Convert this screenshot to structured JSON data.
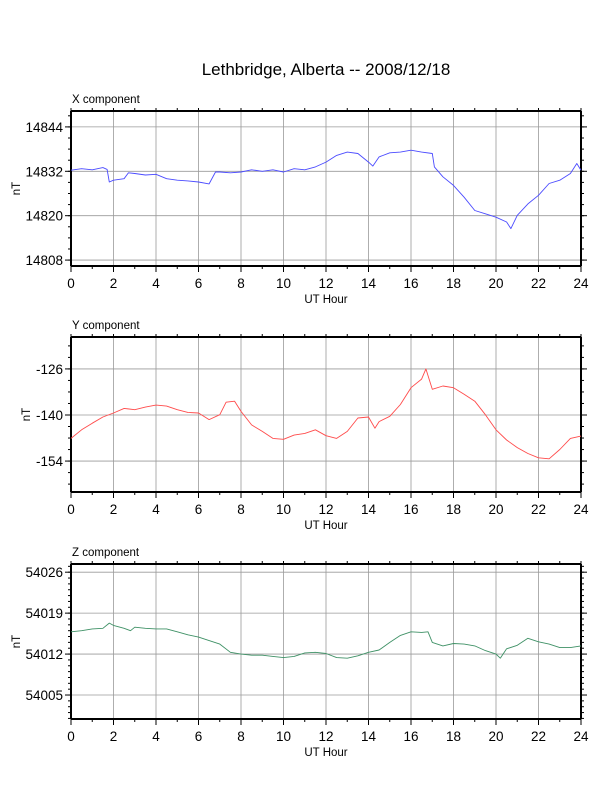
{
  "title": "Lethbridge, Alberta -- 2008/12/18",
  "chart_data": [
    {
      "type": "line",
      "title": "X component",
      "xlabel": "UT Hour",
      "ylabel": "nT",
      "xlim": [
        0,
        24
      ],
      "ylim": [
        14806.4,
        14848.3
      ],
      "xticks": [
        0,
        2,
        4,
        6,
        8,
        10,
        12,
        14,
        16,
        18,
        20,
        22,
        24
      ],
      "yticks": [
        14808,
        14820,
        14832,
        14844
      ],
      "yminor": 3,
      "grid": true,
      "color": "#4b4bff",
      "series": [
        {
          "name": "X",
          "x": [
            0,
            0.5,
            1,
            1.5,
            1.7,
            1.8,
            2,
            2.5,
            2.7,
            3,
            3.5,
            4,
            4.5,
            5,
            5.5,
            6,
            6.5,
            6.8,
            7,
            7.5,
            8,
            8.5,
            9,
            9.5,
            10,
            10.5,
            11,
            11.5,
            12,
            12.5,
            13,
            13.5,
            14,
            14.2,
            14.5,
            15,
            15.5,
            16,
            16.5,
            17,
            17.1,
            17.5,
            18,
            18.5,
            19,
            19.5,
            20,
            20.5,
            20.7,
            21,
            21.5,
            22,
            22.5,
            23,
            23.5,
            23.8,
            24
          ],
          "y": [
            14832.3,
            14832.7,
            14832.4,
            14833,
            14832.5,
            14829.1,
            14829.6,
            14830,
            14831.6,
            14831.4,
            14831,
            14831.2,
            14830,
            14829.6,
            14829.4,
            14829.1,
            14828.6,
            14831.8,
            14831.8,
            14831.6,
            14831.8,
            14832.4,
            14832,
            14832.4,
            14831.8,
            14832.7,
            14832.4,
            14833.2,
            14834.5,
            14836.3,
            14837.2,
            14836.8,
            14834.5,
            14833.4,
            14835.9,
            14837,
            14837.2,
            14837.7,
            14837.2,
            14836.8,
            14833.2,
            14830.5,
            14828.2,
            14825,
            14821.4,
            14820.5,
            14819.6,
            14818.3,
            14816.5,
            14820.1,
            14823.2,
            14825.5,
            14828.7,
            14829.6,
            14831.4,
            14834.1,
            14832.3
          ]
        }
      ]
    },
    {
      "type": "line",
      "title": "Y component",
      "xlabel": "UT Hour",
      "ylabel": "nT",
      "xlim": [
        0,
        24
      ],
      "ylim": [
        -163.4,
        -116.3
      ],
      "xticks": [
        0,
        2,
        4,
        6,
        8,
        10,
        12,
        14,
        16,
        18,
        20,
        22,
        24
      ],
      "yticks": [
        -154,
        -140,
        -126
      ],
      "yminor": 3.5,
      "grid": true,
      "color": "#ff4b4b",
      "series": [
        {
          "name": "Y",
          "x": [
            0,
            0.5,
            1,
            1.5,
            2,
            2.5,
            3,
            3.5,
            4,
            4.5,
            5,
            5.5,
            6,
            6.5,
            7,
            7.3,
            7.7,
            8,
            8.5,
            9,
            9.5,
            10,
            10.5,
            11,
            11.5,
            12,
            12.5,
            13,
            13.5,
            14,
            14.3,
            14.5,
            15,
            15.5,
            16,
            16.5,
            16.7,
            17,
            17.5,
            18,
            18.5,
            19,
            19.5,
            20,
            20.5,
            21,
            21.5,
            22,
            22.5,
            23,
            23.5,
            24
          ],
          "y": [
            -147.1,
            -144.5,
            -142.5,
            -140.6,
            -139.4,
            -138,
            -138.4,
            -137.6,
            -137,
            -137.3,
            -138.4,
            -139.2,
            -139.4,
            -141.4,
            -139.9,
            -136.1,
            -135.8,
            -138.9,
            -143,
            -145,
            -147.1,
            -147.4,
            -146.1,
            -145.6,
            -144.5,
            -146.3,
            -147.1,
            -145,
            -140.9,
            -140.6,
            -144,
            -142,
            -140.4,
            -136.8,
            -131.7,
            -129.1,
            -126,
            -132.2,
            -131.2,
            -131.7,
            -133.7,
            -135.8,
            -139.9,
            -144.5,
            -147.6,
            -149.9,
            -151.7,
            -153,
            -153.3,
            -150.5,
            -147.1,
            -146.4
          ]
        }
      ]
    },
    {
      "type": "line",
      "title": "Z component",
      "xlabel": "UT Hour",
      "ylabel": "nT",
      "xlim": [
        0,
        24
      ],
      "ylim": [
        54000.9,
        54027.4
      ],
      "xticks": [
        0,
        2,
        4,
        6,
        8,
        10,
        12,
        14,
        16,
        18,
        20,
        22,
        24
      ],
      "yticks": [
        54005,
        54012,
        54019,
        54026
      ],
      "yminor": 1,
      "grid": true,
      "color": "#3f9166",
      "series": [
        {
          "name": "Z",
          "x": [
            0,
            0.5,
            1,
            1.5,
            1.8,
            2,
            2.5,
            2.8,
            3,
            3.5,
            4,
            4.5,
            5,
            5.5,
            6,
            6.5,
            7,
            7.5,
            8,
            8.5,
            9,
            9.5,
            10,
            10.5,
            11,
            11.5,
            12,
            12.5,
            13,
            13.5,
            14,
            14.5,
            15,
            15.5,
            16,
            16.5,
            16.8,
            17,
            17.5,
            18,
            18.5,
            19,
            19.5,
            20,
            20.2,
            20.5,
            21,
            21.5,
            22,
            22.5,
            23,
            23.5,
            24
          ],
          "y": [
            54015.8,
            54016,
            54016.3,
            54016.4,
            54017.3,
            54016.9,
            54016.4,
            54016,
            54016.6,
            54016.4,
            54016.3,
            54016.3,
            54015.8,
            54015.3,
            54014.9,
            54014.3,
            54013.7,
            54012.3,
            54012,
            54011.8,
            54011.8,
            54011.6,
            54011.4,
            54011.6,
            54012.2,
            54012.3,
            54012.1,
            54011.4,
            54011.3,
            54011.7,
            54012.3,
            54012.7,
            54014,
            54015.2,
            54015.8,
            54015.7,
            54015.8,
            54014,
            54013.4,
            54013.8,
            54013.7,
            54013.4,
            54012.6,
            54012,
            54011.3,
            54012.9,
            54013.5,
            54014.7,
            54014.1,
            54013.7,
            54013.1,
            54013.1,
            54013.4
          ]
        }
      ]
    }
  ]
}
